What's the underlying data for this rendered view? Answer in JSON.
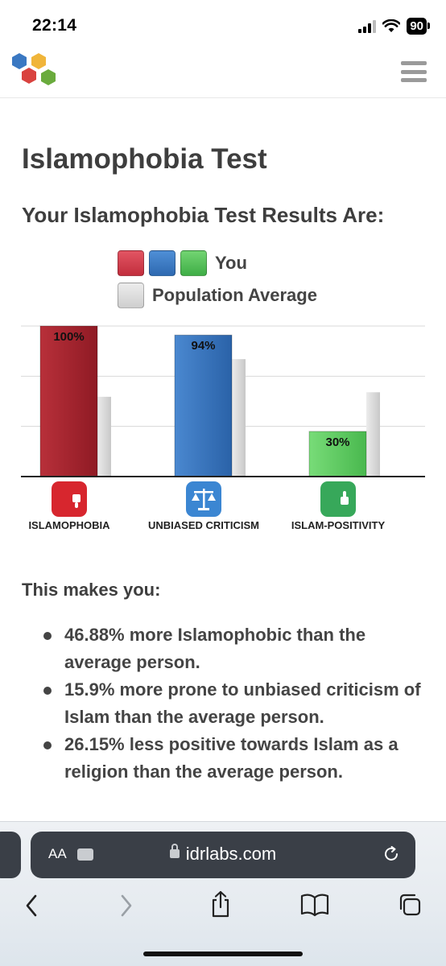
{
  "status": {
    "time": "22:14",
    "battery": "90"
  },
  "page": {
    "title": "Islamophobia Test",
    "results_heading": "Your Islamophobia Test Results Are:"
  },
  "legend": {
    "you": "You",
    "population": "Population Average"
  },
  "chart_data": {
    "type": "bar",
    "categories": [
      "ISLAMOPHOBIA",
      "UNBIASED CRITICISM",
      "ISLAM-POSITIVITY"
    ],
    "series": [
      {
        "name": "You",
        "values": [
          100,
          94,
          30
        ],
        "colors": [
          "#b02530",
          "#2f6db3",
          "#5bc85b"
        ]
      },
      {
        "name": "Population Average",
        "values": [
          53,
          78,
          56
        ],
        "color": "#d2d2d2"
      }
    ],
    "value_labels": [
      "100%",
      "94%",
      "30%"
    ],
    "ylim": [
      0,
      100
    ],
    "grid": true
  },
  "summary": {
    "heading": "This makes you:",
    "items": [
      "46.88% more Islamophobic than the average person.",
      "15.9% more prone to unbiased criticism of Islam than the average person.",
      "26.15% less positive towards Islam as a religion than the average person."
    ]
  },
  "browser": {
    "text_size": "AA",
    "url": "idrlabs.com"
  }
}
